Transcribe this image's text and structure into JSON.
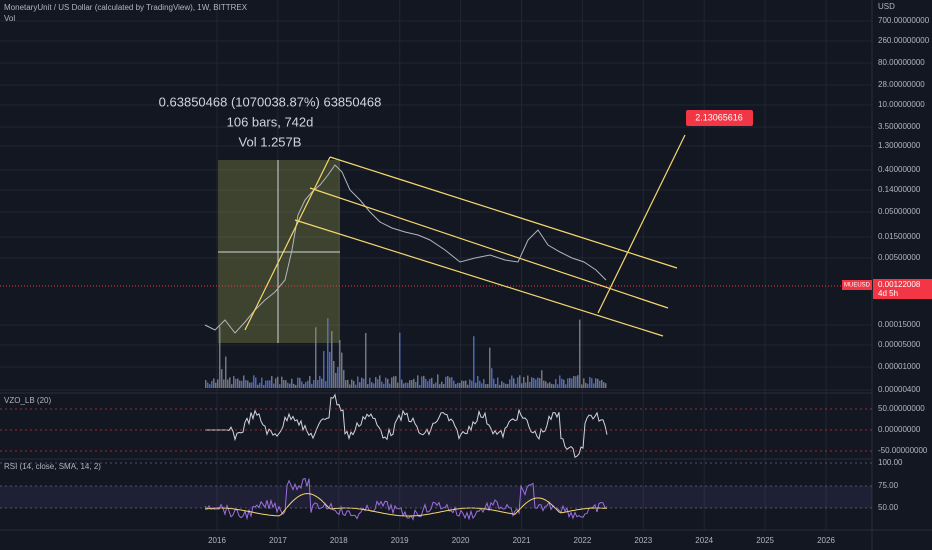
{
  "header": {
    "title": "MonetaryUnit / US Dollar (calculated by TradingView), 1W, BITTREX",
    "volume_label": "Vol"
  },
  "measure": {
    "change": "0.63850468 (1070038.87%) 63850468",
    "bars": "106 bars, 742d",
    "volume": "Vol 1.257B"
  },
  "target_label": "2.13065616",
  "price_axis": {
    "currency": "USD",
    "labels": [
      "700.00000000",
      "260.00000000",
      "80.00000000",
      "28.00000000",
      "10.00000000",
      "3.50000000",
      "1.30000000",
      "0.40000000",
      "0.14000000",
      "0.05000000",
      "0.01500000",
      "0.00500000",
      "0.00015000",
      "0.00005000",
      "0.00001000",
      "0.00000400"
    ]
  },
  "price_tag": {
    "symbol": "MUEUSD",
    "price": "0.00122008",
    "countdown": "4d 5h"
  },
  "vzo": {
    "title": "VZO_LB (20)",
    "labels": [
      "50.00000000",
      "0.00000000",
      "-50.00000000"
    ]
  },
  "rsi": {
    "title": "RSI (14, close, SMA, 14, 2)",
    "labels": [
      "100.00",
      "75.00",
      "50.00"
    ]
  },
  "time_axis": {
    "labels": [
      "2016",
      "2017",
      "2018",
      "2019",
      "2020",
      "2021",
      "2022",
      "2023",
      "2024",
      "2025",
      "2026"
    ]
  }
}
